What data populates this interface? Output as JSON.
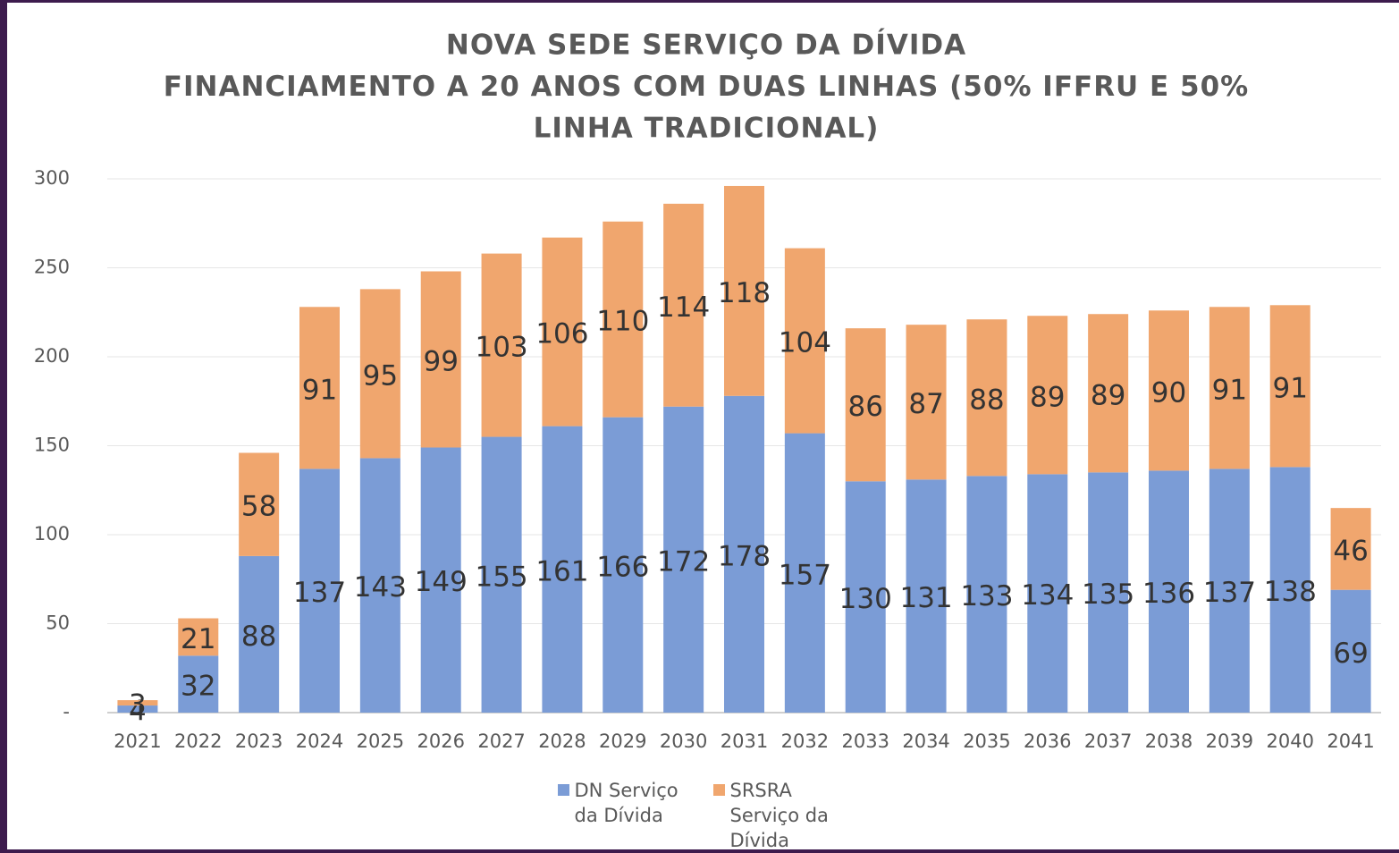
{
  "chart_data": {
    "type": "stacked_bar",
    "title": [
      "NOVA SEDE SERVIÇO DA DÍVIDA",
      "FINANCIAMENTO A 20 ANOS COM DUAS LINHAS (50% IFFRU E 50%",
      "LINHA TRADICIONAL)"
    ],
    "categories": [
      "2021",
      "2022",
      "2023",
      "2024",
      "2025",
      "2026",
      "2027",
      "2028",
      "2029",
      "2030",
      "2031",
      "2032",
      "2033",
      "2034",
      "2035",
      "2036",
      "2037",
      "2038",
      "2039",
      "2040",
      "2041"
    ],
    "series": [
      {
        "name": "DN Serviço da Dívida",
        "color": "#7b9cd6",
        "values": [
          4,
          32,
          88,
          137,
          143,
          149,
          155,
          161,
          166,
          172,
          178,
          157,
          130,
          131,
          133,
          134,
          135,
          136,
          137,
          138,
          69
        ]
      },
      {
        "name": "SRSRA Serviço da Dívida",
        "color": "#f0a66e",
        "values": [
          3,
          21,
          58,
          91,
          95,
          99,
          103,
          106,
          110,
          114,
          118,
          104,
          86,
          87,
          88,
          89,
          89,
          90,
          91,
          91,
          46
        ]
      }
    ],
    "ylim": [
      0,
      300
    ],
    "yticks": [
      {
        "value": 0,
        "label": "-"
      },
      50,
      100,
      150,
      200,
      250,
      300
    ],
    "grid": true,
    "legend": "bottom"
  }
}
